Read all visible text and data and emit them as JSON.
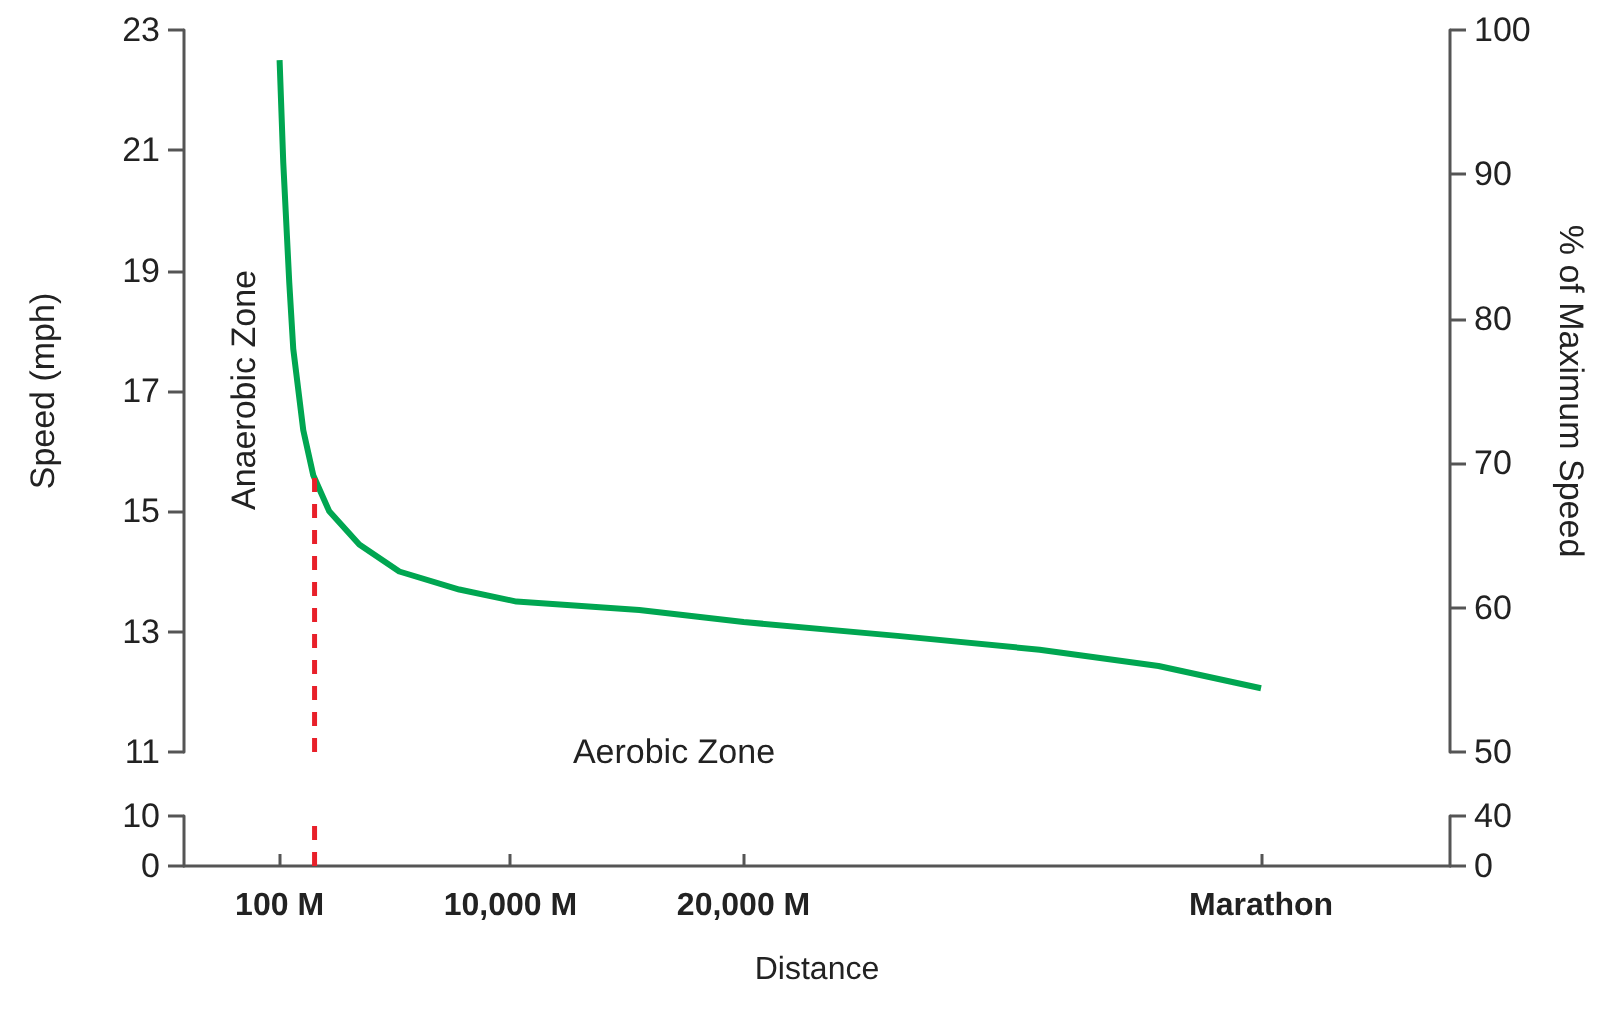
{
  "chart_data": [
    {
      "type": "line",
      "ylabel": "Speed (mph)",
      "y2label": "% of Maximum Speed",
      "annotations": [
        "Anaerobic Zone",
        "Aerobic Zone"
      ],
      "xlim": [
        -4000,
        50300
      ],
      "ylim": [
        11,
        23
      ],
      "yticks": [
        11,
        13,
        15,
        17,
        19,
        21,
        23
      ],
      "y2lim": [
        50,
        100
      ],
      "y2ticks": [
        50,
        60,
        70,
        80,
        90,
        100
      ],
      "tick_labels": "y",
      "grid": false,
      "marker": "none",
      "series": [
        {
          "color": "#00a651",
          "x": [
            100,
            257,
            515,
            686,
            1115,
            1544,
            2230,
            3518,
            5234,
            7808,
            10260,
            15530,
            20000,
            26600,
            32700,
            37800,
            42195
          ],
          "values": [
            22.5,
            20.8,
            18.8,
            17.7,
            16.35,
            15.6,
            15.0,
            14.45,
            14.0,
            13.7,
            13.5,
            13.36,
            13.16,
            12.93,
            12.7,
            12.43,
            12.06
          ]
        },
        {
          "color": "#e8202a",
          "line_style": "dashed",
          "x": [
            1600,
            1600
          ],
          "values": [
            11,
            15.6
          ]
        }
      ]
    },
    {
      "type": "line",
      "xlabel": "Distance",
      "xlim": [
        -4000,
        50300
      ],
      "xticks": [
        {
          "value": 100,
          "label": "100 M"
        },
        {
          "value": 10000,
          "label": "10,000 M"
        },
        {
          "value": 20000,
          "label": "20,000 M"
        },
        {
          "value": 42195,
          "label": "Marathon"
        }
      ],
      "ylim": [
        0,
        10
      ],
      "yticks": [
        0,
        10
      ],
      "y2lim": [
        0,
        40
      ],
      "y2ticks": [
        0,
        40
      ],
      "grid": false,
      "marker": "none",
      "series": [
        {
          "color": "#e8202a",
          "line_style": "dashed",
          "x": [
            1600,
            1600
          ],
          "values": [
            0,
            10
          ]
        }
      ]
    }
  ]
}
